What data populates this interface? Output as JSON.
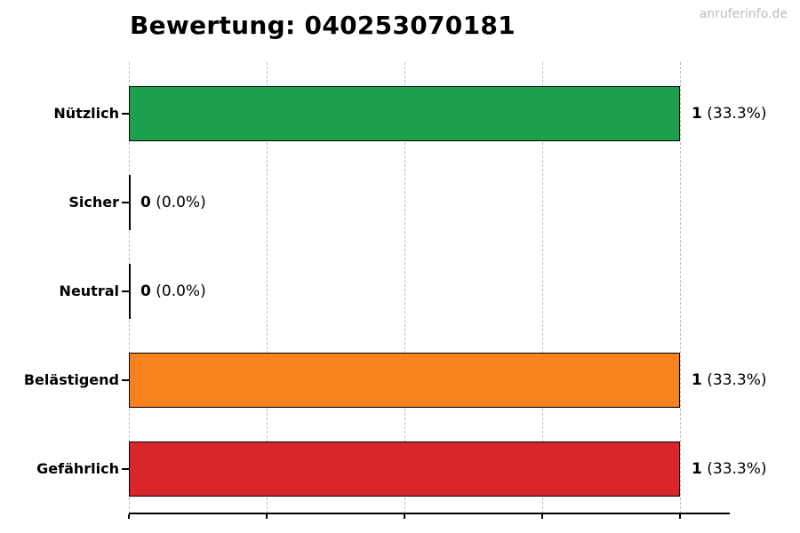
{
  "watermark": "anruferinfo.de",
  "chart_data": {
    "type": "bar",
    "orientation": "horizontal",
    "title": "Bewertung: 040253070181",
    "categories": [
      "Nützlich",
      "Sicher",
      "Neutral",
      "Belästigend",
      "Gefährlich"
    ],
    "values": [
      1,
      0,
      0,
      1,
      1
    ],
    "percentages": [
      33.3,
      0.0,
      0.0,
      33.3,
      33.3
    ],
    "value_strings": [
      "1",
      "0",
      "0",
      "1",
      "1"
    ],
    "percent_strings": [
      "(33.3%)",
      "(0.0%)",
      "(0.0%)",
      "(33.3%)",
      "(33.3%)"
    ],
    "full_labels": [
      "1 (33.3%)",
      "0 (0.0%)",
      "0 (0.0%)",
      "1 (33.3%)",
      "1 (33.3%)"
    ],
    "colors": [
      "#1ca04b",
      null,
      null,
      "#f7821e",
      "#d8262a"
    ],
    "xlim": [
      0,
      1.09
    ],
    "gridlines": [
      0,
      0.25,
      0.5,
      0.75,
      1.0
    ],
    "grid": "dashed-vertical",
    "legend": "none",
    "xlabel": "",
    "ylabel": ""
  }
}
